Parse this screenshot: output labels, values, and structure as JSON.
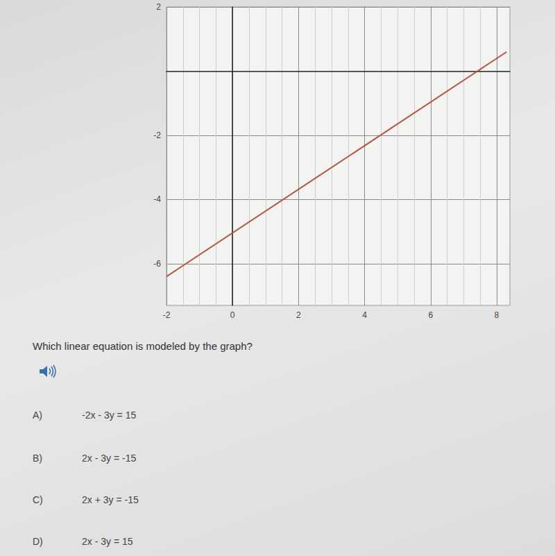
{
  "chart_data": {
    "type": "line",
    "xlim": [
      -2,
      8.4
    ],
    "ylim": [
      -7.3,
      2
    ],
    "xticks": [
      -2,
      0,
      2,
      4,
      6,
      8
    ],
    "yticks": [
      -6,
      -4,
      -2,
      2
    ],
    "grid": true,
    "x": [
      -2,
      8.3
    ],
    "values": [
      -6.4,
      0.6
    ],
    "color": "#b5533c"
  },
  "question": "Which linear equation is modeled by the graph?",
  "choices": [
    {
      "letter": "A)",
      "equation": "-2x - 3y = 15"
    },
    {
      "letter": "B)",
      "equation": "2x - 3y = -15"
    },
    {
      "letter": "C)",
      "equation": "2x + 3y = -15"
    },
    {
      "letter": "D)",
      "equation": "2x - 3y = 15"
    }
  ]
}
